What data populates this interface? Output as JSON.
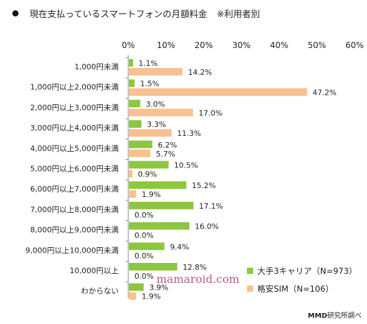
{
  "title": {
    "text": "現在支払っているスマートフォンの月額料金",
    "note": "※利用者別"
  },
  "watermark": "mamaroid.com",
  "credit": {
    "brand": "MMD",
    "rest": "研究所調べ"
  },
  "colors": {
    "carrier": "#8dc63f",
    "sim": "#fac090",
    "axis": "#888888"
  },
  "chart_data": {
    "type": "bar",
    "orientation": "horizontal",
    "xlim": [
      0,
      60
    ],
    "x_ticks": [
      "0%",
      "10%",
      "20%",
      "30%",
      "40%",
      "50%",
      "60%"
    ],
    "x_tick_values": [
      0,
      10,
      20,
      30,
      40,
      50,
      60
    ],
    "grid": false,
    "legend_position": "bottom-right",
    "categories": [
      "1,000円未満",
      "1,000円以上2,000円未満",
      "2,000円以上3,000円未満",
      "3,000円以上4,000円未満",
      "4,000円以上5,000円未満",
      "5,000円以上6,000円未満",
      "6,000円以上7,000円未満",
      "7,000円以上8,000円未満",
      "8,000円以上9,000円未満",
      "9,000円以上10,000円未満",
      "10,000円以上",
      "わからない"
    ],
    "series": [
      {
        "name": "大手3キャリア（N=973）",
        "values": [
          1.1,
          1.5,
          3.0,
          3.3,
          6.2,
          10.5,
          15.2,
          17.1,
          16.0,
          9.4,
          12.8,
          3.9
        ],
        "labels": [
          "1.1%",
          "1.5%",
          "3.0%",
          "3.3%",
          "6.2%",
          "10.5%",
          "15.2%",
          "17.1%",
          "16.0%",
          "9.4%",
          "12.8%",
          "3.9%"
        ]
      },
      {
        "name": "格安SIM（N=106）",
        "values": [
          14.2,
          47.2,
          17.0,
          11.3,
          5.7,
          0.9,
          1.9,
          0.0,
          0.0,
          0.0,
          0.0,
          1.9
        ],
        "labels": [
          "14.2%",
          "47.2%",
          "17.0%",
          "11.3%",
          "5.7%",
          "0.9%",
          "1.9%",
          "0.0%",
          "0.0%",
          "0.0%",
          "0.0%",
          "1.9%"
        ]
      }
    ]
  }
}
